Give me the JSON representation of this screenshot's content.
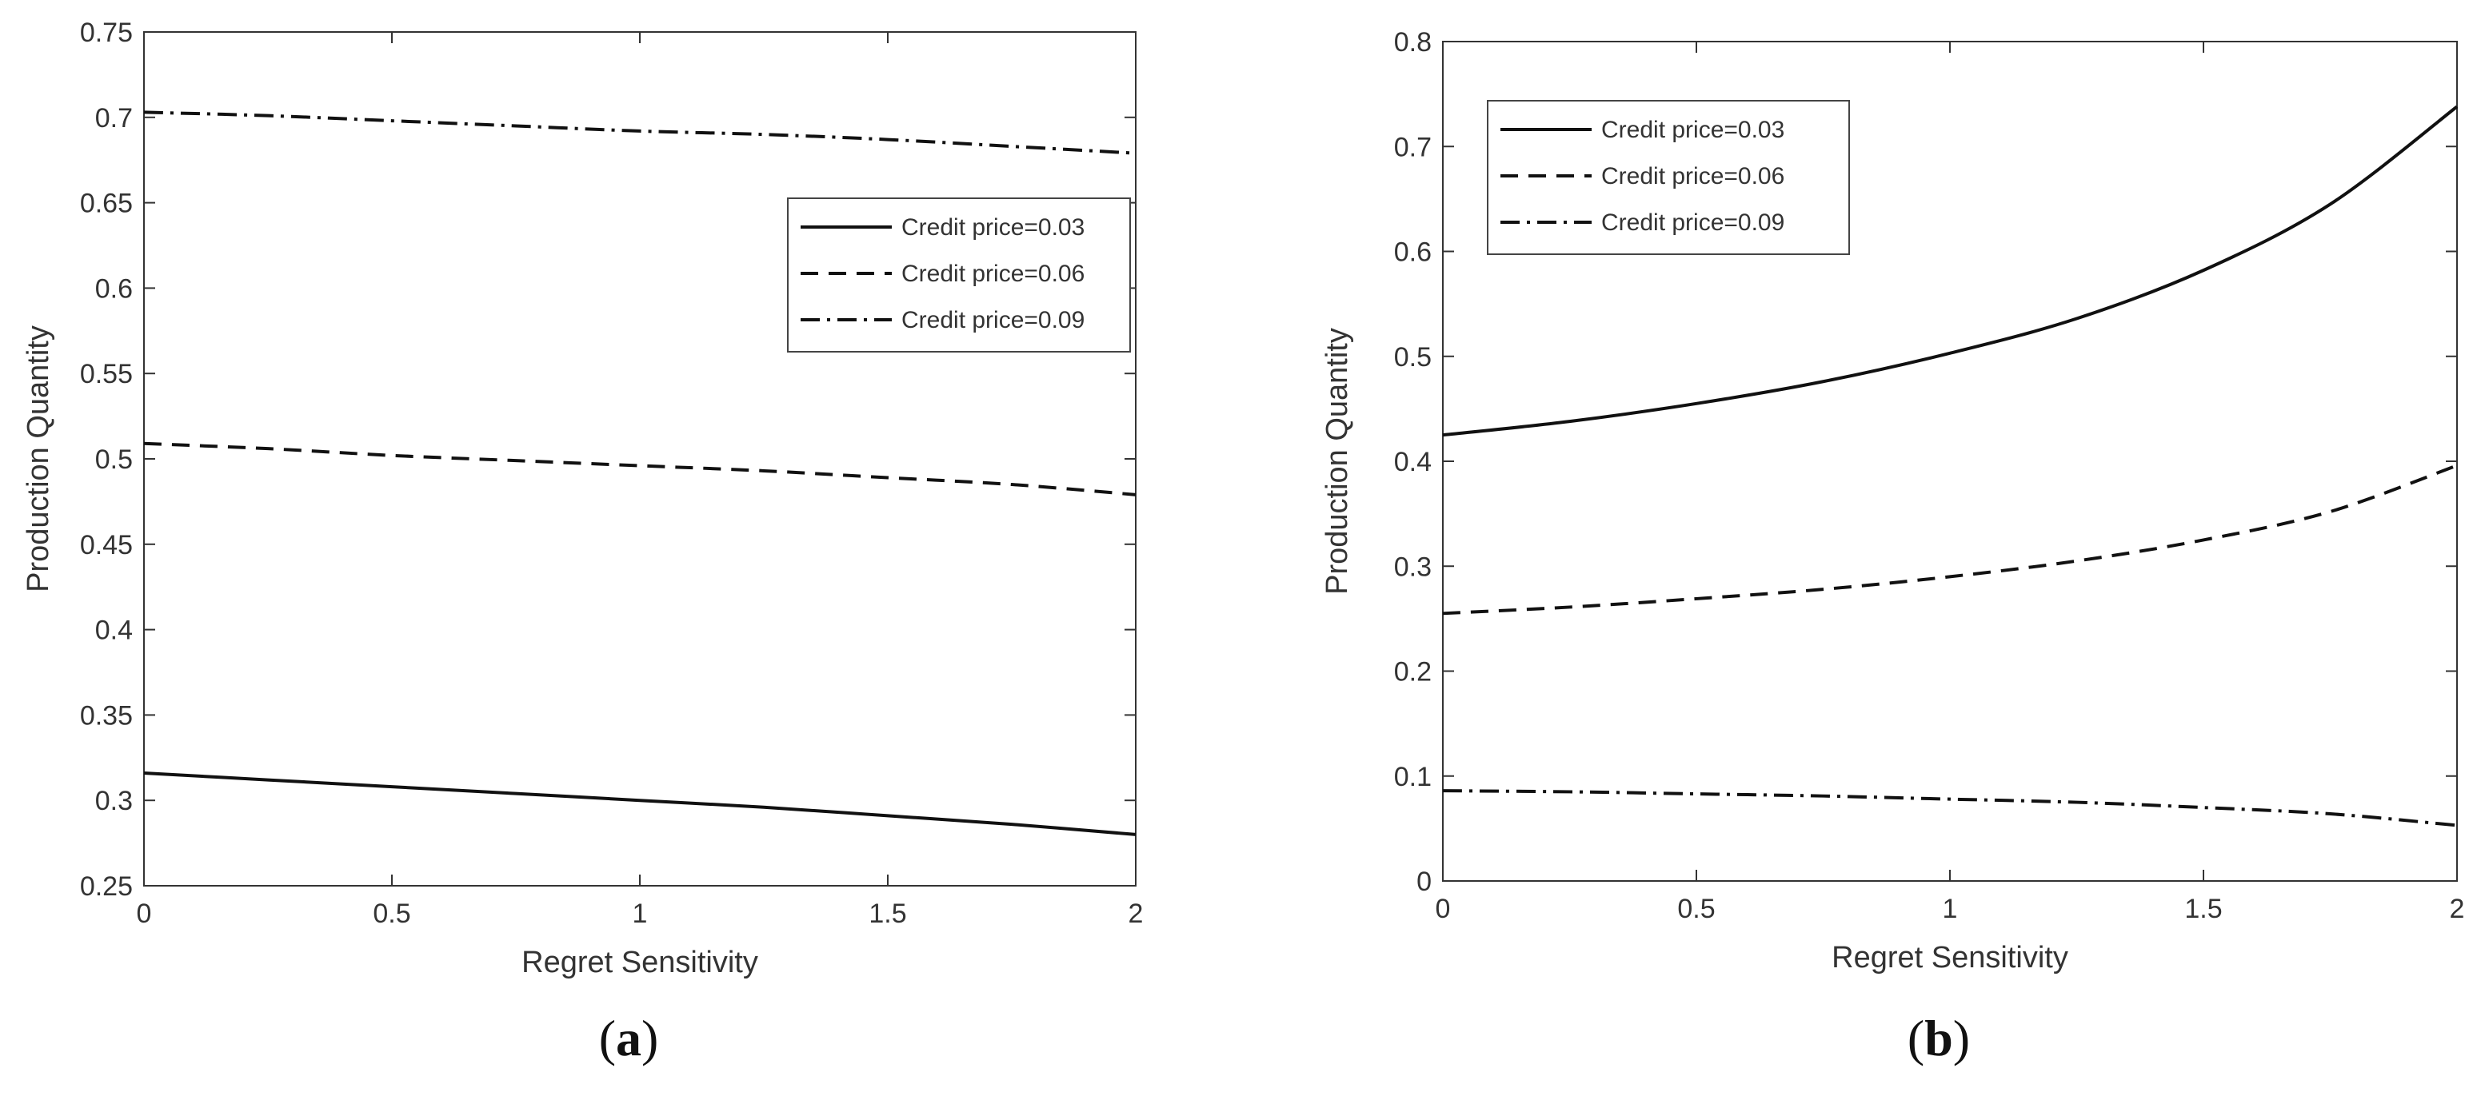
{
  "colors": {
    "line": "#111111",
    "axis": "#333333",
    "legend_border": "#444444",
    "background": "#ffffff"
  },
  "chart_data": [
    {
      "id": "a",
      "type": "line",
      "caption": "a",
      "xlabel": "Regret Sensitivity",
      "ylabel": "Production Quantity",
      "xlim": [
        0,
        2
      ],
      "ylim": [
        0.25,
        0.75
      ],
      "xticks": [
        0,
        0.5,
        1,
        1.5,
        2
      ],
      "xtick_labels": [
        "0",
        "0.5",
        "1",
        "1.5",
        "2"
      ],
      "yticks": [
        0.25,
        0.3,
        0.35,
        0.4,
        0.45,
        0.5,
        0.55,
        0.6,
        0.65,
        0.7,
        0.75
      ],
      "ytick_labels": [
        "0.25",
        "0.3",
        "0.35",
        "0.4",
        "0.45",
        "0.5",
        "0.55",
        "0.6",
        "0.65",
        "0.7",
        "0.75"
      ],
      "grid": false,
      "legend_position": "upper-right",
      "x": [
        0,
        0.25,
        0.5,
        0.75,
        1,
        1.25,
        1.5,
        1.75,
        2
      ],
      "series": [
        {
          "name": "Credit price=0.03",
          "style": "solid",
          "values": [
            0.316,
            0.312,
            0.308,
            0.304,
            0.3,
            0.296,
            0.291,
            0.286,
            0.28
          ]
        },
        {
          "name": "Credit price=0.06",
          "style": "dashed",
          "values": [
            0.509,
            0.506,
            0.502,
            0.499,
            0.496,
            0.493,
            0.489,
            0.485,
            0.479
          ]
        },
        {
          "name": "Credit price=0.09",
          "style": "dashdot",
          "values": [
            0.703,
            0.701,
            0.698,
            0.695,
            0.692,
            0.69,
            0.687,
            0.683,
            0.679
          ]
        }
      ]
    },
    {
      "id": "b",
      "type": "line",
      "caption": "b",
      "xlabel": "Regret Sensitivity",
      "ylabel": "Production Quantity",
      "xlim": [
        0,
        2
      ],
      "ylim": [
        0,
        0.8
      ],
      "xticks": [
        0,
        0.5,
        1,
        1.5,
        2
      ],
      "xtick_labels": [
        "0",
        "0.5",
        "1",
        "1.5",
        "2"
      ],
      "yticks": [
        0,
        0.1,
        0.2,
        0.3,
        0.4,
        0.5,
        0.6,
        0.7,
        0.8
      ],
      "ytick_labels": [
        "0",
        "0.1",
        "0.2",
        "0.3",
        "0.4",
        "0.5",
        "0.6",
        "0.7",
        "0.8"
      ],
      "grid": false,
      "legend_position": "upper-left",
      "x": [
        0,
        0.25,
        0.5,
        0.75,
        1,
        1.25,
        1.5,
        1.75,
        2
      ],
      "series": [
        {
          "name": "Credit price=0.03",
          "style": "solid",
          "values": [
            0.425,
            0.438,
            0.455,
            0.476,
            0.503,
            0.536,
            0.582,
            0.645,
            0.738
          ]
        },
        {
          "name": "Credit price=0.06",
          "style": "dashed",
          "values": [
            0.255,
            0.261,
            0.269,
            0.278,
            0.29,
            0.305,
            0.325,
            0.352,
            0.396
          ]
        },
        {
          "name": "Credit price=0.09",
          "style": "dashdot",
          "values": [
            0.086,
            0.085,
            0.083,
            0.081,
            0.078,
            0.075,
            0.07,
            0.064,
            0.053
          ]
        }
      ]
    }
  ]
}
